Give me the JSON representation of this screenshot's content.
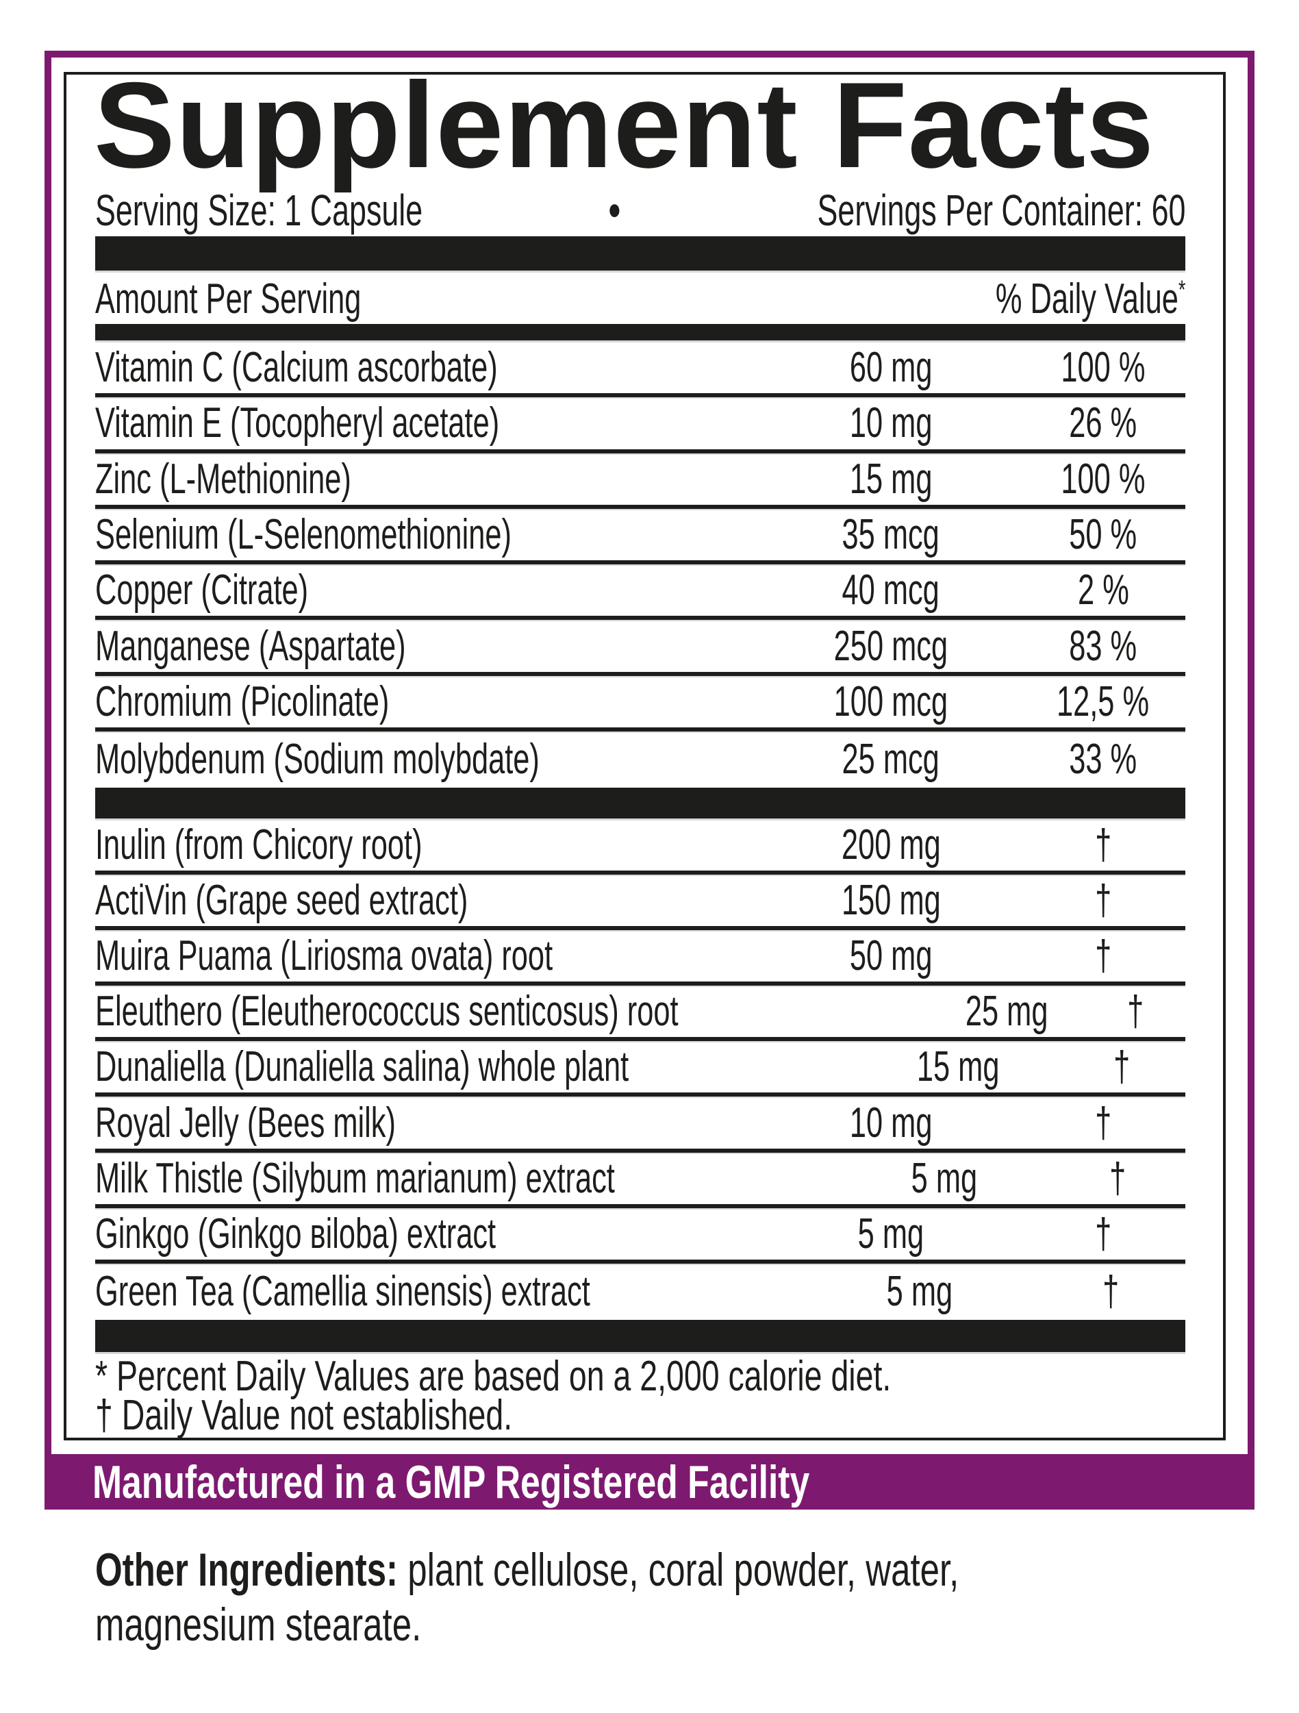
{
  "title": "Supplement Facts",
  "serving": {
    "size_label": "Serving Size: 1 Capsule",
    "bullet": "●",
    "container_label": "Servings Per Container: 60"
  },
  "table": {
    "header_left": "Amount Per Serving",
    "header_right": "% Daily Value",
    "header_right_mark": "*",
    "minerals": [
      {
        "name": "Vitamin C (Calcium ascorbate)",
        "amount": "60 mg",
        "dv": "100 %"
      },
      {
        "name": "Vitamin E (Tocopheryl acetate)",
        "amount": "10 mg",
        "dv": "26 %"
      },
      {
        "name": "Zinc (L-Methionine)",
        "amount": "15 mg",
        "dv": "100 %"
      },
      {
        "name": "Selenium (L-Selenomethionine)",
        "amount": "35 mcg",
        "dv": "50 %"
      },
      {
        "name": "Copper (Citrate)",
        "amount": "40 mcg",
        "dv": "2 %"
      },
      {
        "name": "Manganese (Aspartate)",
        "amount": "250 mcg",
        "dv": "83 %"
      },
      {
        "name": "Chromium (Picolinate)",
        "amount": "100 mcg",
        "dv": "12,5 %"
      },
      {
        "name": "Molybdenum (Sodium molybdate)",
        "amount": "25 mcg",
        "dv": "33 %"
      }
    ],
    "botanicals": [
      {
        "name": "Inulin (from Chicory root)",
        "amount": "200 mg",
        "dv": "†"
      },
      {
        "name": "ActiVin (Grape seed extract)",
        "amount": "150 mg",
        "dv": "†"
      },
      {
        "name": "Muira Puama (Liriosma ovata) root",
        "amount": "50 mg",
        "dv": "†"
      },
      {
        "name": "Eleuthero (Eleutherococcus senticosus) root",
        "amount": "25 mg",
        "dv": "†"
      },
      {
        "name": "Dunaliella (Dunaliella salina) whole plant",
        "amount": "15 mg",
        "dv": "†"
      },
      {
        "name": "Royal Jelly (Bees milk)",
        "amount": "10 mg",
        "dv": "†"
      },
      {
        "name": "Milk Thistle (Silybum marianum) extract",
        "amount": "5 mg",
        "dv": "†"
      },
      {
        "name": "Ginkgo (Ginkgo вiloba) extract",
        "amount": "5 mg",
        "dv": "†"
      },
      {
        "name": "Green Tea (Camellia sinensis) extract",
        "amount": "5 mg",
        "dv": "†"
      }
    ]
  },
  "footnotes": {
    "line1": "* Percent Daily Values are based on a 2,000 calorie diet.",
    "line2": "† Daily Value not established."
  },
  "gmp_banner": "Manufactured in a GMP Registered Facility",
  "other_ingredients": {
    "label": "Other Ingredients:",
    "line1_text": " plant cellulose, coral powder, water,",
    "line2": "magnesium stearate."
  },
  "colors": {
    "accent_purple": "#7d1a70",
    "ink": "#1d1d1b"
  }
}
